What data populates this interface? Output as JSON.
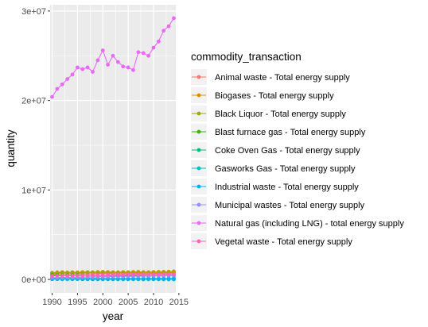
{
  "chart_data": {
    "type": "line",
    "xlabel": "year",
    "ylabel": "quantity",
    "xlim": [
      1989.6,
      2014.4
    ],
    "ylim": [
      -1500000,
      30700000
    ],
    "x_ticks": [
      1990,
      1995,
      2000,
      2005,
      2010,
      2015
    ],
    "x_tick_labels": [
      "1990",
      "1995",
      "2000",
      "2005",
      "2010",
      "2015"
    ],
    "y_ticks": [
      0,
      10000000,
      20000000,
      30000000
    ],
    "y_tick_labels": [
      "0e+00",
      "1e+07",
      "2e+07",
      "3e+07"
    ],
    "grid": true,
    "legend_title": "commodity_transaction",
    "legend_position": "right",
    "x": [
      1990,
      1991,
      1992,
      1993,
      1994,
      1995,
      1996,
      1997,
      1998,
      1999,
      2000,
      2001,
      2002,
      2003,
      2004,
      2005,
      2006,
      2007,
      2008,
      2009,
      2010,
      2011,
      2012,
      2013,
      2014
    ],
    "series": [
      {
        "name": "Animal waste - Total energy supply",
        "color": "#F8766D",
        "values": [
          600000,
          620000,
          640000,
          610000,
          650000,
          630000,
          660000,
          640000,
          650000,
          670000,
          680000,
          660000,
          650000,
          640000,
          660000,
          650000,
          670000,
          680000,
          660000,
          650000,
          670000,
          680000,
          690000,
          700000,
          720000
        ]
      },
      {
        "name": "Biogases - Total energy supply",
        "color": "#D89000",
        "values": [
          750000,
          800000,
          820000,
          780000,
          810000,
          790000,
          830000,
          820000,
          810000,
          840000,
          850000,
          830000,
          820000,
          810000,
          830000,
          820000,
          840000,
          850000,
          830000,
          820000,
          840000,
          850000,
          860000,
          870000,
          900000
        ]
      },
      {
        "name": "Black Liquor - Total energy supply",
        "color": "#A3A500",
        "values": [
          700000,
          720000,
          760000,
          740000,
          750000,
          730000,
          760000,
          780000,
          790000,
          770000,
          800000,
          760000,
          740000,
          750000,
          760000,
          740000,
          760000,
          770000,
          750000,
          720000,
          740000,
          750000,
          760000,
          770000,
          780000
        ]
      },
      {
        "name": "Blast furnace gas - Total energy supply",
        "color": "#39B600",
        "values": [
          500000,
          480000,
          460000,
          470000,
          480000,
          490000,
          470000,
          480000,
          460000,
          450000,
          470000,
          450000,
          440000,
          450000,
          460000,
          450000,
          460000,
          470000,
          440000,
          380000,
          430000,
          440000,
          430000,
          420000,
          430000
        ]
      },
      {
        "name": "Coke Oven Gas - Total energy supply",
        "color": "#00BF7D",
        "values": [
          120000,
          115000,
          110000,
          112000,
          110000,
          108000,
          105000,
          106000,
          104000,
          100000,
          102000,
          98000,
          96000,
          95000,
          97000,
          95000,
          96000,
          97000,
          94000,
          88000,
          92000,
          93000,
          92000,
          91000,
          92000
        ]
      },
      {
        "name": "Gasworks Gas - Total energy supply",
        "color": "#00BFC4",
        "values": [
          30000,
          28000,
          26000,
          24000,
          22000,
          20000,
          19000,
          18000,
          17000,
          16000,
          15000,
          14000,
          13000,
          12000,
          12000,
          11000,
          11000,
          10000,
          10000,
          9000,
          9000,
          9000,
          8000,
          8000,
          8000
        ]
      },
      {
        "name": "Industrial waste - Total energy supply",
        "color": "#00B0F6",
        "values": [
          60000,
          62000,
          64000,
          66000,
          68000,
          70000,
          72000,
          74000,
          76000,
          78000,
          80000,
          82000,
          84000,
          86000,
          88000,
          90000,
          92000,
          94000,
          96000,
          98000,
          100000,
          102000,
          104000,
          106000,
          108000
        ]
      },
      {
        "name": "Municipal wastes - Total energy supply",
        "color": "#9590FF",
        "values": [
          200000,
          210000,
          220000,
          230000,
          240000,
          250000,
          260000,
          270000,
          280000,
          290000,
          300000,
          310000,
          320000,
          330000,
          340000,
          350000,
          360000,
          370000,
          380000,
          390000,
          400000,
          410000,
          420000,
          430000,
          440000
        ]
      },
      {
        "name": "Natural gas (including LNG) - total energy supply",
        "color": "#E76BF3",
        "values": [
          20400000,
          21300000,
          21800000,
          22400000,
          22900000,
          23700000,
          23500000,
          23700000,
          23200000,
          24500000,
          25600000,
          24000000,
          25000000,
          24300000,
          23800000,
          23700000,
          23400000,
          25400000,
          25300000,
          25000000,
          25900000,
          26600000,
          27800000,
          28300000,
          29200000
        ]
      },
      {
        "name": "Vegetal waste - Total energy supply",
        "color": "#FF62BC",
        "values": [
          400000,
          410000,
          420000,
          430000,
          440000,
          450000,
          455000,
          460000,
          470000,
          480000,
          490000,
          495000,
          500000,
          510000,
          520000,
          530000,
          540000,
          545000,
          550000,
          555000,
          560000,
          570000,
          580000,
          590000,
          600000
        ]
      }
    ]
  }
}
